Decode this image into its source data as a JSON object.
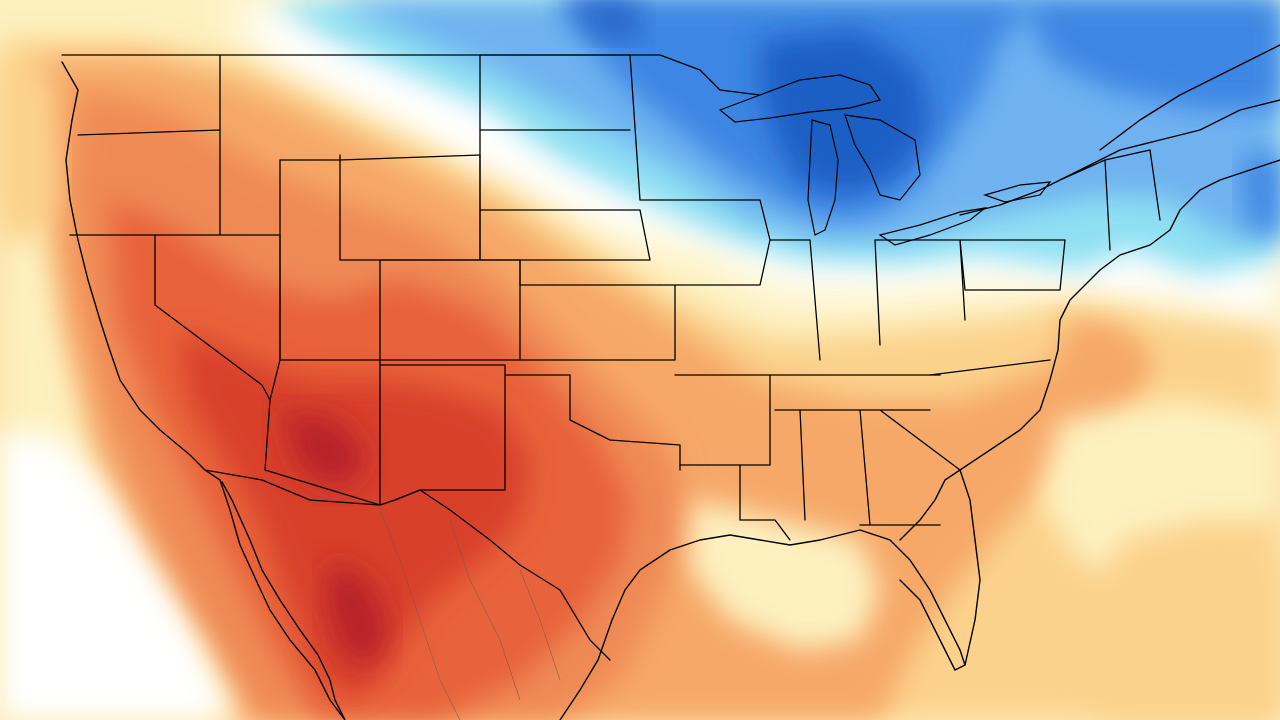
{
  "map": {
    "type": "temperature-anomaly",
    "region": "contiguous-united-states",
    "palette": {
      "deep_blue": "#1f5fc4",
      "blue": "#3d86e3",
      "mid_blue": "#6fb2f0",
      "light_blue": "#8fe0f2",
      "neutral": "#ffffff",
      "pale_yellow": "#fdf1c0",
      "light_orange": "#fbd28c",
      "orange": "#f6a868",
      "dark_orange": "#ef8a55",
      "red_orange": "#e8623a",
      "red": "#d8402a",
      "dark_red": "#b8222a"
    },
    "warm_region": "west-south",
    "cold_region": "north-great-lakes"
  }
}
